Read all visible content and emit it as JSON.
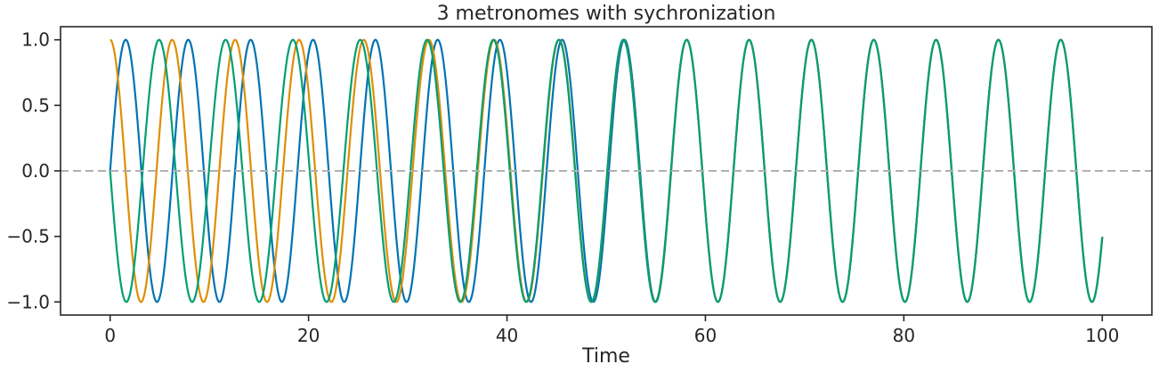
{
  "chart_data": {
    "type": "line",
    "title": "3 metronomes with sychronization",
    "xlabel": "Time",
    "ylabel": "",
    "xlim": [
      -5,
      105
    ],
    "ylim": [
      -1.1,
      1.1
    ],
    "xticks": [
      0,
      20,
      40,
      60,
      80,
      100
    ],
    "yticks": [
      1.0,
      0.5,
      0.0,
      -0.5,
      -1.0
    ],
    "xtick_labels": [
      "0",
      "20",
      "40",
      "60",
      "80",
      "100"
    ],
    "ytick_labels": [
      "1.0",
      "0.5",
      "0.0",
      "−0.5",
      "−1.0"
    ],
    "reference_line": {
      "y": 0.0,
      "style": "dashed",
      "color": "#b0b0b0"
    },
    "grid": false,
    "x_range": [
      0,
      100
    ],
    "sync_time": 60,
    "series": [
      {
        "color": "#0173b2",
        "initial_phase_deg": 0,
        "initial_period": 6.3,
        "final_period": 6.283
      },
      {
        "color": "#de8f05",
        "initial_phase_deg": 90,
        "initial_period": 6.2,
        "final_period": 6.283
      },
      {
        "color": "#029e73",
        "initial_phase_deg": 180,
        "initial_period": 6.5,
        "final_period": 6.283
      }
    ]
  }
}
